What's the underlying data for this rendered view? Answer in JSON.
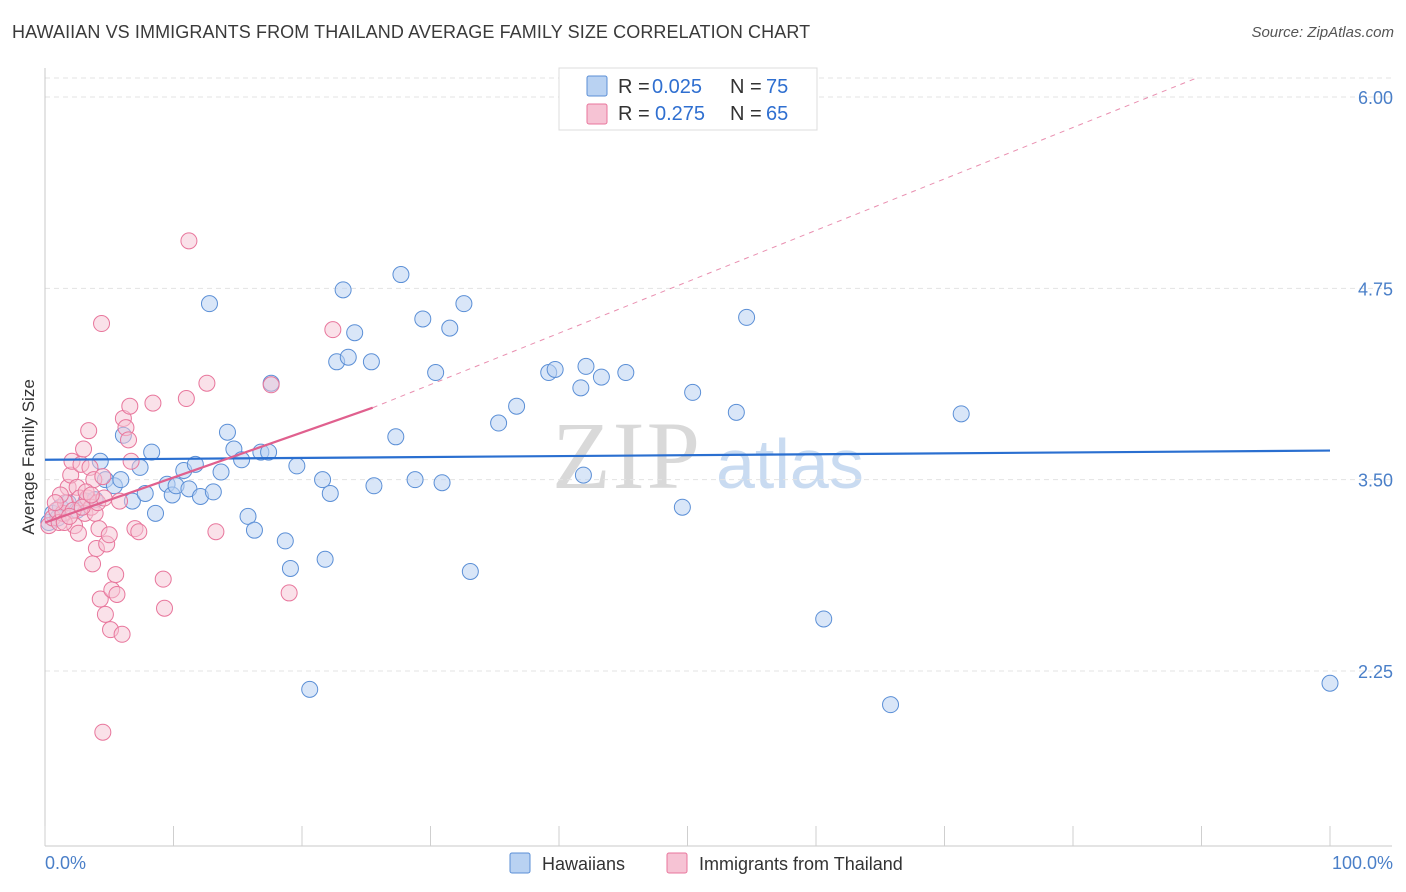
{
  "title": "HAWAIIAN VS IMMIGRANTS FROM THAILAND AVERAGE FAMILY SIZE CORRELATION CHART",
  "source": "Source: ZipAtlas.com",
  "watermark": {
    "zip": "ZIP",
    "atlas": "atlas"
  },
  "legend": {
    "r_label": "R =",
    "n_label": "N =",
    "rows": [
      {
        "r": "0.025",
        "n": "75"
      },
      {
        "r": "0.275",
        "n": "65"
      }
    ]
  },
  "bottom_legend": [
    "Hawaiians",
    "Immigrants from Thailand"
  ],
  "colors": {
    "hawaiians": "#5b8fd6",
    "hawaiians_fill": "#b9d2f2",
    "thailand": "#e8769c",
    "thailand_fill": "#f6c3d4",
    "blue_line": "#2a6fd0",
    "pink_line": "#e0608e"
  },
  "chart_data": {
    "type": "scatter",
    "title": "HAWAIIAN VS IMMIGRANTS FROM THAILAND AVERAGE FAMILY SIZE CORRELATION CHART",
    "xlabel": "",
    "ylabel": "Average Family Size",
    "xlim": [
      0,
      100
    ],
    "ylim": [
      1.2,
      6.1
    ],
    "x_tick_labels": [
      "0.0%",
      "100.0%"
    ],
    "y_ticks": [
      2.25,
      3.5,
      4.75,
      6.0
    ],
    "y_tick_labels": [
      "2.25",
      "3.50",
      "4.75",
      "6.00"
    ],
    "series": [
      {
        "name": "Hawaiians",
        "r": 0.025,
        "n": 75,
        "trend": {
          "x0": 0,
          "y0": 3.63,
          "x1": 100,
          "y1": 3.69
        },
        "points": [
          [
            0.3,
            3.22
          ],
          [
            0.6,
            3.28
          ],
          [
            1.2,
            3.32
          ],
          [
            1.8,
            3.35
          ],
          [
            2.5,
            3.3
          ],
          [
            3.2,
            3.36
          ],
          [
            3.9,
            3.37
          ],
          [
            4.3,
            3.62
          ],
          [
            4.7,
            3.5
          ],
          [
            5.4,
            3.46
          ],
          [
            5.9,
            3.5
          ],
          [
            6.1,
            3.79
          ],
          [
            6.8,
            3.36
          ],
          [
            7.4,
            3.58
          ],
          [
            7.8,
            3.41
          ],
          [
            8.3,
            3.68
          ],
          [
            8.6,
            3.28
          ],
          [
            9.5,
            3.47
          ],
          [
            9.9,
            3.4
          ],
          [
            10.2,
            3.46
          ],
          [
            10.8,
            3.56
          ],
          [
            11.2,
            3.44
          ],
          [
            11.7,
            3.6
          ],
          [
            12.1,
            3.39
          ],
          [
            12.8,
            4.65
          ],
          [
            13.1,
            3.42
          ],
          [
            13.7,
            3.55
          ],
          [
            14.2,
            3.81
          ],
          [
            14.7,
            3.7
          ],
          [
            15.3,
            3.63
          ],
          [
            15.8,
            3.26
          ],
          [
            16.3,
            3.17
          ],
          [
            16.8,
            3.68
          ],
          [
            17.4,
            3.68
          ],
          [
            17.6,
            4.13
          ],
          [
            18.7,
            3.1
          ],
          [
            19.1,
            2.92
          ],
          [
            19.6,
            3.59
          ],
          [
            20.6,
            2.13
          ],
          [
            21.6,
            3.5
          ],
          [
            21.8,
            2.98
          ],
          [
            22.2,
            3.41
          ],
          [
            22.7,
            4.27
          ],
          [
            23.2,
            4.74
          ],
          [
            23.6,
            4.3
          ],
          [
            24.1,
            4.46
          ],
          [
            25.4,
            4.27
          ],
          [
            25.6,
            3.46
          ],
          [
            27.3,
            3.78
          ],
          [
            27.7,
            4.84
          ],
          [
            28.8,
            3.5
          ],
          [
            29.4,
            4.55
          ],
          [
            30.4,
            4.2
          ],
          [
            30.9,
            3.48
          ],
          [
            31.5,
            4.49
          ],
          [
            32.6,
            4.65
          ],
          [
            33.1,
            2.9
          ],
          [
            35.3,
            3.87
          ],
          [
            36.7,
            3.98
          ],
          [
            39.2,
            4.2
          ],
          [
            39.7,
            4.22
          ],
          [
            41.7,
            4.1
          ],
          [
            41.9,
            3.53
          ],
          [
            42.1,
            4.24
          ],
          [
            43.3,
            4.17
          ],
          [
            45.2,
            4.2
          ],
          [
            49.6,
            3.32
          ],
          [
            50.4,
            4.07
          ],
          [
            53.8,
            3.94
          ],
          [
            54.6,
            4.56
          ],
          [
            60.6,
            2.59
          ],
          [
            65.8,
            2.03
          ],
          [
            71.3,
            3.93
          ],
          [
            100.0,
            2.17
          ],
          [
            1.0,
            3.25
          ]
        ]
      },
      {
        "name": "Immigrants from Thailand",
        "r": 0.275,
        "n": 65,
        "trend": {
          "x0": 0,
          "y0": 3.22,
          "x1": 25.5,
          "y1": 3.97
        },
        "trend_dashed": {
          "x0": 25.5,
          "y0": 3.97,
          "x1": 89.5,
          "y1": 6.12
        },
        "points": [
          [
            0.3,
            3.2
          ],
          [
            0.6,
            3.25
          ],
          [
            0.9,
            3.3
          ],
          [
            1.1,
            3.22
          ],
          [
            1.4,
            3.28
          ],
          [
            1.6,
            3.35
          ],
          [
            1.8,
            3.45
          ],
          [
            2.0,
            3.53
          ],
          [
            2.1,
            3.62
          ],
          [
            2.3,
            3.2
          ],
          [
            2.5,
            3.45
          ],
          [
            2.7,
            3.38
          ],
          [
            2.8,
            3.6
          ],
          [
            3.0,
            3.7
          ],
          [
            3.1,
            3.28
          ],
          [
            3.3,
            3.38
          ],
          [
            3.4,
            3.82
          ],
          [
            3.5,
            3.58
          ],
          [
            3.6,
            3.32
          ],
          [
            3.7,
            2.95
          ],
          [
            3.8,
            3.5
          ],
          [
            3.9,
            3.28
          ],
          [
            4.0,
            3.05
          ],
          [
            4.1,
            3.35
          ],
          [
            4.2,
            3.18
          ],
          [
            4.3,
            2.72
          ],
          [
            4.4,
            4.52
          ],
          [
            4.5,
            1.85
          ],
          [
            4.6,
            3.38
          ],
          [
            4.7,
            2.62
          ],
          [
            4.8,
            3.08
          ],
          [
            5.0,
            3.14
          ],
          [
            5.1,
            2.52
          ],
          [
            5.2,
            2.78
          ],
          [
            5.5,
            2.88
          ],
          [
            5.6,
            2.75
          ],
          [
            5.8,
            3.36
          ],
          [
            6.0,
            2.49
          ],
          [
            6.1,
            3.9
          ],
          [
            6.3,
            3.84
          ],
          [
            6.5,
            3.76
          ],
          [
            6.6,
            3.98
          ],
          [
            6.7,
            3.62
          ],
          [
            7.0,
            3.18
          ],
          [
            7.3,
            3.16
          ],
          [
            8.4,
            4.0
          ],
          [
            9.2,
            2.85
          ],
          [
            9.3,
            2.66
          ],
          [
            11.0,
            4.03
          ],
          [
            11.2,
            5.06
          ],
          [
            12.6,
            4.13
          ],
          [
            13.3,
            3.16
          ],
          [
            19.0,
            2.76
          ],
          [
            17.6,
            4.12
          ],
          [
            22.4,
            4.48
          ],
          [
            1.2,
            3.4
          ],
          [
            2.2,
            3.3
          ],
          [
            2.6,
            3.15
          ],
          [
            0.8,
            3.35
          ],
          [
            1.5,
            3.22
          ],
          [
            3.2,
            3.42
          ],
          [
            2.9,
            3.32
          ],
          [
            1.9,
            3.26
          ],
          [
            4.5,
            3.52
          ],
          [
            3.6,
            3.4
          ]
        ]
      }
    ]
  }
}
